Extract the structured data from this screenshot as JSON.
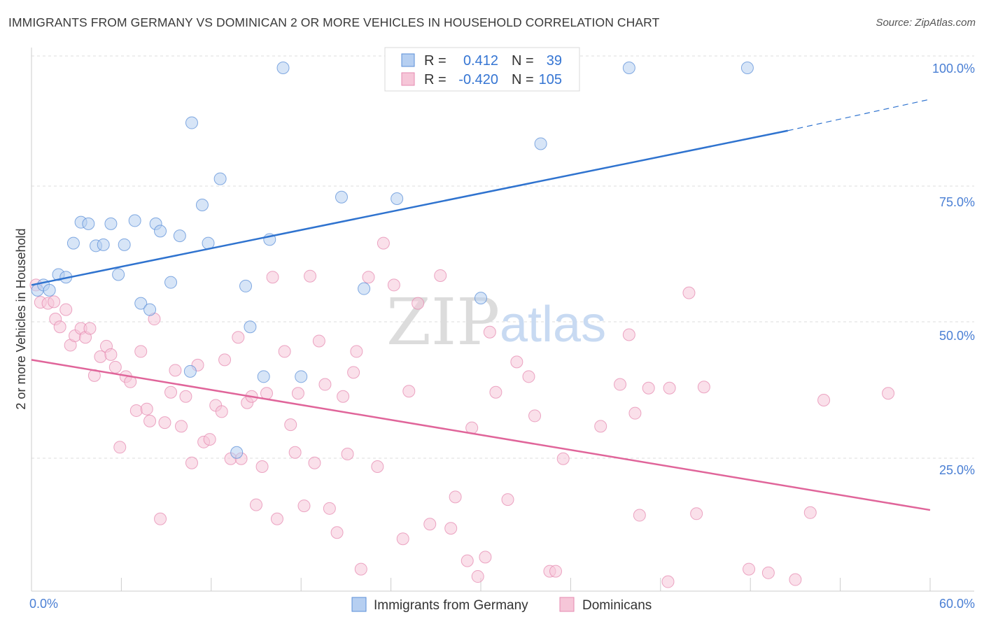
{
  "header": {
    "title": "IMMIGRANTS FROM GERMANY VS DOMINICAN 2 OR MORE VEHICLES IN HOUSEHOLD CORRELATION CHART",
    "source": "Source: ZipAtlas.com"
  },
  "watermark": {
    "zip": "ZIP",
    "atlas": "atlas"
  },
  "colors": {
    "germany": "#5b8fd8",
    "germany_fill": "#b6cff1",
    "dominican": "#e58ab0",
    "dominican_fill": "#f6c6d8",
    "germany_line": "#2f73cf",
    "dominican_line": "#e0659a",
    "tick_label": "#4a7fd4",
    "grid": "#dcdcdc"
  },
  "legend": {
    "rows": [
      {
        "r_label": "R =",
        "r_value": "0.412",
        "n_label": "N =",
        "n_value": "39"
      },
      {
        "r_label": "R =",
        "r_value": "-0.420",
        "n_label": "N =",
        "n_value": "105"
      }
    ]
  },
  "bottom_legend": {
    "items": [
      {
        "label": "Immigrants from Germany"
      },
      {
        "label": "Dominicans"
      }
    ]
  },
  "chart_data": {
    "type": "scatter",
    "title": "IMMIGRANTS FROM GERMANY VS DOMINICAN 2 OR MORE VEHICLES IN HOUSEHOLD CORRELATION CHART",
    "xlabel": "",
    "ylabel": "2 or more Vehicles in Household",
    "xlim": [
      0,
      60
    ],
    "ylim": [
      0,
      100
    ],
    "x_tick_labels": [
      "0.0%",
      "60.0%"
    ],
    "y_tick_labels": [
      "100.0%",
      "75.0%",
      "50.0%",
      "25.0%"
    ],
    "y_ticks": [
      100,
      75,
      50,
      25
    ],
    "grid": true,
    "legend_position": "top-center",
    "series": [
      {
        "name": "Immigrants from Germany",
        "r": 0.412,
        "n": 39,
        "trend": {
          "x0": 0,
          "y0": 58.5,
          "x1": 50.5,
          "y1": 88.0,
          "dash_to_x": 60,
          "dash_to_y": 94.0
        },
        "points": [
          [
            0.4,
            57.5
          ],
          [
            0.8,
            58.5
          ],
          [
            1.2,
            57.5
          ],
          [
            1.8,
            60.5
          ],
          [
            2.3,
            60.0
          ],
          [
            2.8,
            66.5
          ],
          [
            3.3,
            70.5
          ],
          [
            3.8,
            70.2
          ],
          [
            4.3,
            66.0
          ],
          [
            4.8,
            66.2
          ],
          [
            5.3,
            70.2
          ],
          [
            6.2,
            66.2
          ],
          [
            5.8,
            60.5
          ],
          [
            6.9,
            70.8
          ],
          [
            7.3,
            55.0
          ],
          [
            7.9,
            53.8
          ],
          [
            8.3,
            70.2
          ],
          [
            8.6,
            68.8
          ],
          [
            9.3,
            59.0
          ],
          [
            9.9,
            67.9
          ],
          [
            10.6,
            42.0
          ],
          [
            10.7,
            89.5
          ],
          [
            11.4,
            73.8
          ],
          [
            11.8,
            66.5
          ],
          [
            12.6,
            78.8
          ],
          [
            13.7,
            26.5
          ],
          [
            14.3,
            58.3
          ],
          [
            14.6,
            50.5
          ],
          [
            15.5,
            41.0
          ],
          [
            15.9,
            67.2
          ],
          [
            16.8,
            100.0
          ],
          [
            18.0,
            41.0
          ],
          [
            20.7,
            75.3
          ],
          [
            22.2,
            57.8
          ],
          [
            24.4,
            75.0
          ],
          [
            30.0,
            56.0
          ],
          [
            34.0,
            85.5
          ],
          [
            39.9,
            100.0
          ],
          [
            47.8,
            100.0
          ]
        ]
      },
      {
        "name": "Dominicans",
        "r": -0.42,
        "n": 105,
        "trend": {
          "x0": 0,
          "y0": 44.2,
          "x1": 60,
          "y1": 15.5
        },
        "points": [
          [
            0.3,
            58.5
          ],
          [
            0.6,
            55.2
          ],
          [
            1.1,
            55.0
          ],
          [
            1.5,
            55.3
          ],
          [
            1.6,
            52.0
          ],
          [
            1.9,
            50.5
          ],
          [
            2.3,
            53.8
          ],
          [
            2.6,
            47.0
          ],
          [
            2.9,
            48.8
          ],
          [
            3.3,
            50.2
          ],
          [
            3.6,
            48.5
          ],
          [
            3.9,
            50.2
          ],
          [
            4.2,
            41.2
          ],
          [
            4.6,
            44.8
          ],
          [
            5.0,
            46.8
          ],
          [
            5.3,
            45.2
          ],
          [
            5.6,
            42.8
          ],
          [
            5.9,
            27.5
          ],
          [
            6.3,
            41.0
          ],
          [
            6.6,
            40.0
          ],
          [
            7.0,
            34.5
          ],
          [
            7.3,
            45.8
          ],
          [
            7.7,
            34.8
          ],
          [
            7.9,
            32.5
          ],
          [
            8.2,
            52.0
          ],
          [
            8.6,
            13.8
          ],
          [
            8.9,
            32.2
          ],
          [
            9.3,
            38.0
          ],
          [
            9.6,
            42.2
          ],
          [
            10.0,
            31.5
          ],
          [
            10.3,
            37.2
          ],
          [
            10.7,
            24.5
          ],
          [
            11.1,
            43.2
          ],
          [
            11.5,
            28.5
          ],
          [
            11.9,
            29.0
          ],
          [
            12.3,
            35.5
          ],
          [
            12.7,
            34.3
          ],
          [
            12.9,
            44.2
          ],
          [
            13.3,
            25.3
          ],
          [
            13.8,
            48.5
          ],
          [
            14.0,
            25.3
          ],
          [
            14.4,
            36.0
          ],
          [
            14.7,
            37.2
          ],
          [
            15.0,
            16.5
          ],
          [
            15.4,
            23.8
          ],
          [
            15.7,
            37.8
          ],
          [
            16.1,
            60.0
          ],
          [
            16.4,
            13.8
          ],
          [
            16.9,
            45.8
          ],
          [
            17.3,
            31.8
          ],
          [
            17.6,
            26.5
          ],
          [
            17.8,
            37.8
          ],
          [
            18.2,
            16.3
          ],
          [
            18.6,
            60.2
          ],
          [
            18.9,
            24.5
          ],
          [
            19.2,
            47.8
          ],
          [
            19.6,
            39.5
          ],
          [
            19.9,
            15.8
          ],
          [
            20.4,
            11.2
          ],
          [
            20.8,
            37.2
          ],
          [
            21.1,
            26.2
          ],
          [
            21.5,
            41.8
          ],
          [
            21.7,
            45.8
          ],
          [
            22.0,
            4.2
          ],
          [
            22.5,
            60.0
          ],
          [
            23.1,
            23.8
          ],
          [
            23.5,
            66.5
          ],
          [
            24.2,
            58.5
          ],
          [
            24.8,
            10.0
          ],
          [
            25.2,
            38.2
          ],
          [
            25.8,
            55.0
          ],
          [
            26.6,
            12.8
          ],
          [
            27.3,
            60.3
          ],
          [
            28.0,
            12.0
          ],
          [
            28.3,
            18.0
          ],
          [
            29.1,
            5.8
          ],
          [
            29.4,
            31.2
          ],
          [
            29.8,
            2.8
          ],
          [
            30.3,
            6.5
          ],
          [
            30.6,
            49.5
          ],
          [
            31.0,
            38.0
          ],
          [
            31.8,
            17.5
          ],
          [
            32.4,
            43.8
          ],
          [
            33.2,
            41.0
          ],
          [
            33.6,
            33.5
          ],
          [
            34.6,
            3.8
          ],
          [
            35.0,
            3.8
          ],
          [
            35.5,
            25.3
          ],
          [
            38.0,
            31.5
          ],
          [
            39.3,
            39.5
          ],
          [
            39.9,
            49.0
          ],
          [
            40.3,
            34.0
          ],
          [
            40.6,
            14.5
          ],
          [
            41.2,
            38.8
          ],
          [
            42.5,
            1.8
          ],
          [
            42.6,
            38.8
          ],
          [
            43.9,
            57.0
          ],
          [
            44.4,
            14.8
          ],
          [
            44.9,
            39.0
          ],
          [
            47.9,
            4.2
          ],
          [
            49.2,
            3.5
          ],
          [
            51.0,
            2.2
          ],
          [
            52.0,
            15.0
          ],
          [
            52.9,
            36.5
          ],
          [
            57.2,
            37.8
          ]
        ]
      }
    ]
  }
}
